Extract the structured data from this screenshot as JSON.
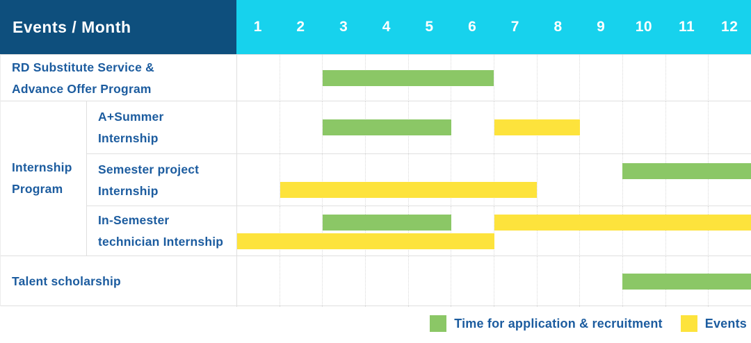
{
  "header": {
    "title": "Events / Month"
  },
  "colors": {
    "header_bg": "#0E4F7D",
    "months_bg": "#17D2ED",
    "application_green": "#8BC766",
    "event_yellow": "#FDE33C",
    "label_text": "#1C5C9F",
    "grid_line": "#DFDFDF"
  },
  "legend": {
    "items": [
      {
        "label": "Time for application & recruitment",
        "series": "application",
        "color": "#8BC766"
      },
      {
        "label": "Events",
        "series": "event",
        "color": "#FDE33C"
      }
    ]
  },
  "chart_data": {
    "type": "gantt",
    "title": "Events / Month",
    "x_axis": {
      "label": "Month",
      "ticks": [
        "1",
        "2",
        "3",
        "4",
        "5",
        "6",
        "7",
        "8",
        "9",
        "10",
        "11",
        "12"
      ],
      "range": [
        1,
        12
      ]
    },
    "series": [
      {
        "key": "application",
        "name": "Time for application & recruitment",
        "color": "#8BC766"
      },
      {
        "key": "event",
        "name": "Events",
        "color": "#FDE33C"
      }
    ],
    "groups": [
      {
        "group_label": null,
        "rows": [
          {
            "label": "RD Substitute Service & Advance Offer Program",
            "label_lines": [
              "RD Substitute Service &",
              "Advance Offer Program"
            ],
            "lanes": 1,
            "bars": [
              {
                "series": "application",
                "start_month": 3,
                "end_month": 6,
                "lane": 0
              }
            ]
          }
        ]
      },
      {
        "group_label": "Internship Program",
        "group_label_lines": [
          "Internship",
          "Program"
        ],
        "rows": [
          {
            "label": "A+Summer Internship",
            "label_lines": [
              "A+Summer",
              "Internship"
            ],
            "lanes": 1,
            "bars": [
              {
                "series": "application",
                "start_month": 3,
                "end_month": 5,
                "lane": 0
              },
              {
                "series": "event",
                "start_month": 7,
                "end_month": 8,
                "lane": 0
              }
            ]
          },
          {
            "label": "Semester project Internship",
            "label_lines": [
              "Semester project",
              "Internship"
            ],
            "lanes": 2,
            "bars": [
              {
                "series": "application",
                "start_month": 10,
                "end_month": 12,
                "lane": 0
              },
              {
                "series": "event",
                "start_month": 2,
                "end_month": 7,
                "lane": 1
              }
            ]
          },
          {
            "label": "In-Semester technician Internship",
            "label_lines": [
              "In-Semester",
              "technician Internship"
            ],
            "lanes": 2,
            "bars": [
              {
                "series": "application",
                "start_month": 3,
                "end_month": 5,
                "lane": 0
              },
              {
                "series": "event",
                "start_month": 7,
                "end_month": 12,
                "lane": 0
              },
              {
                "series": "event",
                "start_month": 1,
                "end_month": 6,
                "lane": 1
              }
            ]
          }
        ]
      },
      {
        "group_label": null,
        "rows": [
          {
            "label": "Talent scholarship",
            "label_lines": [
              "Talent scholarship"
            ],
            "lanes": 1,
            "bars": [
              {
                "series": "application",
                "start_month": 10,
                "end_month": 12,
                "lane": 0
              }
            ]
          }
        ]
      }
    ]
  }
}
